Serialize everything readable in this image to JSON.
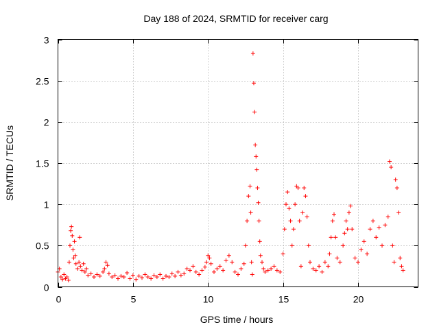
{
  "chart_data": {
    "type": "scatter",
    "title": "Day 188 of 2024, SRMTID for receiver carg",
    "xlabel": "GPS time / hours",
    "ylabel": "SRMTID / TECUs",
    "xlim": [
      0,
      24
    ],
    "ylim": [
      0,
      3
    ],
    "x_ticks": [
      0,
      5,
      10,
      15,
      20
    ],
    "y_ticks": [
      0,
      0.5,
      1,
      1.5,
      2,
      2.5,
      3
    ],
    "x_tick_labels": [
      "0",
      "5",
      "10",
      "15",
      "20"
    ],
    "y_tick_labels": [
      "0",
      "0.5",
      "1",
      "1.5",
      "2",
      "2.5",
      "3"
    ],
    "grid": true,
    "marker": "+",
    "marker_color": "#ff0000",
    "series": [
      {
        "name": "SRMTID",
        "points": [
          [
            0.0,
            0.18
          ],
          [
            0.1,
            0.22
          ],
          [
            0.2,
            0.12
          ],
          [
            0.3,
            0.09
          ],
          [
            0.4,
            0.15
          ],
          [
            0.5,
            0.1
          ],
          [
            0.6,
            0.12
          ],
          [
            0.7,
            0.08
          ],
          [
            0.75,
            0.3
          ],
          [
            0.8,
            0.5
          ],
          [
            0.85,
            0.68
          ],
          [
            0.9,
            0.73
          ],
          [
            0.95,
            0.62
          ],
          [
            1.0,
            0.45
          ],
          [
            1.05,
            0.35
          ],
          [
            1.1,
            0.55
          ],
          [
            1.15,
            0.38
          ],
          [
            1.2,
            0.28
          ],
          [
            1.3,
            0.22
          ],
          [
            1.4,
            0.3
          ],
          [
            1.45,
            0.6
          ],
          [
            1.5,
            0.25
          ],
          [
            1.6,
            0.2
          ],
          [
            1.7,
            0.28
          ],
          [
            1.8,
            0.18
          ],
          [
            1.9,
            0.22
          ],
          [
            2.0,
            0.14
          ],
          [
            2.2,
            0.16
          ],
          [
            2.4,
            0.12
          ],
          [
            2.6,
            0.15
          ],
          [
            2.8,
            0.13
          ],
          [
            3.0,
            0.18
          ],
          [
            3.1,
            0.22
          ],
          [
            3.2,
            0.3
          ],
          [
            3.3,
            0.26
          ],
          [
            3.4,
            0.16
          ],
          [
            3.6,
            0.12
          ],
          [
            3.8,
            0.14
          ],
          [
            4.0,
            0.1
          ],
          [
            4.2,
            0.13
          ],
          [
            4.4,
            0.12
          ],
          [
            4.6,
            0.17
          ],
          [
            4.8,
            0.1
          ],
          [
            5.0,
            0.14
          ],
          [
            5.2,
            0.09
          ],
          [
            5.4,
            0.13
          ],
          [
            5.6,
            0.11
          ],
          [
            5.8,
            0.15
          ],
          [
            6.0,
            0.12
          ],
          [
            6.2,
            0.1
          ],
          [
            6.4,
            0.14
          ],
          [
            6.6,
            0.12
          ],
          [
            6.8,
            0.15
          ],
          [
            7.0,
            0.1
          ],
          [
            7.2,
            0.13
          ],
          [
            7.4,
            0.12
          ],
          [
            7.6,
            0.16
          ],
          [
            7.8,
            0.13
          ],
          [
            8.0,
            0.18
          ],
          [
            8.2,
            0.14
          ],
          [
            8.4,
            0.16
          ],
          [
            8.6,
            0.22
          ],
          [
            8.8,
            0.2
          ],
          [
            9.0,
            0.25
          ],
          [
            9.2,
            0.18
          ],
          [
            9.4,
            0.15
          ],
          [
            9.6,
            0.2
          ],
          [
            9.8,
            0.24
          ],
          [
            9.9,
            0.3
          ],
          [
            10.0,
            0.38
          ],
          [
            10.1,
            0.35
          ],
          [
            10.2,
            0.28
          ],
          [
            10.4,
            0.18
          ],
          [
            10.6,
            0.22
          ],
          [
            10.8,
            0.25
          ],
          [
            11.0,
            0.2
          ],
          [
            11.2,
            0.32
          ],
          [
            11.4,
            0.38
          ],
          [
            11.6,
            0.3
          ],
          [
            11.8,
            0.18
          ],
          [
            12.0,
            0.15
          ],
          [
            12.2,
            0.22
          ],
          [
            12.4,
            0.28
          ],
          [
            12.5,
            0.5
          ],
          [
            12.6,
            0.8
          ],
          [
            12.7,
            1.1
          ],
          [
            12.8,
            1.22
          ],
          [
            12.85,
            0.9
          ],
          [
            12.9,
            0.3
          ],
          [
            12.95,
            0.15
          ],
          [
            13.0,
            2.83
          ],
          [
            13.05,
            2.47
          ],
          [
            13.1,
            2.12
          ],
          [
            13.15,
            1.72
          ],
          [
            13.2,
            1.58
          ],
          [
            13.25,
            1.42
          ],
          [
            13.3,
            1.2
          ],
          [
            13.35,
            1.02
          ],
          [
            13.4,
            0.8
          ],
          [
            13.45,
            0.55
          ],
          [
            13.5,
            0.38
          ],
          [
            13.6,
            0.3
          ],
          [
            13.7,
            0.22
          ],
          [
            13.8,
            0.18
          ],
          [
            14.0,
            0.2
          ],
          [
            14.2,
            0.22
          ],
          [
            14.4,
            0.25
          ],
          [
            14.6,
            0.2
          ],
          [
            14.8,
            0.18
          ],
          [
            15.0,
            0.4
          ],
          [
            15.1,
            0.7
          ],
          [
            15.2,
            1.0
          ],
          [
            15.3,
            1.15
          ],
          [
            15.4,
            0.95
          ],
          [
            15.5,
            0.8
          ],
          [
            15.6,
            0.5
          ],
          [
            15.7,
            0.7
          ],
          [
            15.8,
            1.0
          ],
          [
            15.9,
            1.22
          ],
          [
            16.0,
            1.2
          ],
          [
            16.1,
            0.8
          ],
          [
            16.2,
            0.25
          ],
          [
            16.3,
            0.9
          ],
          [
            16.4,
            1.2
          ],
          [
            16.5,
            1.1
          ],
          [
            16.6,
            0.85
          ],
          [
            16.7,
            0.5
          ],
          [
            16.8,
            0.3
          ],
          [
            17.0,
            0.22
          ],
          [
            17.2,
            0.2
          ],
          [
            17.4,
            0.25
          ],
          [
            17.6,
            0.18
          ],
          [
            17.8,
            0.3
          ],
          [
            18.0,
            0.25
          ],
          [
            18.1,
            0.4
          ],
          [
            18.2,
            0.6
          ],
          [
            18.3,
            0.8
          ],
          [
            18.4,
            0.88
          ],
          [
            18.5,
            0.6
          ],
          [
            18.6,
            0.35
          ],
          [
            18.8,
            0.3
          ],
          [
            19.0,
            0.5
          ],
          [
            19.1,
            0.65
          ],
          [
            19.2,
            0.8
          ],
          [
            19.3,
            0.7
          ],
          [
            19.4,
            0.9
          ],
          [
            19.5,
            0.98
          ],
          [
            19.6,
            0.7
          ],
          [
            19.8,
            0.35
          ],
          [
            20.0,
            0.3
          ],
          [
            20.2,
            0.45
          ],
          [
            20.4,
            0.55
          ],
          [
            20.6,
            0.4
          ],
          [
            20.8,
            0.7
          ],
          [
            21.0,
            0.8
          ],
          [
            21.2,
            0.6
          ],
          [
            21.4,
            0.72
          ],
          [
            21.6,
            0.5
          ],
          [
            21.8,
            0.75
          ],
          [
            22.0,
            0.85
          ],
          [
            22.1,
            1.52
          ],
          [
            22.2,
            1.45
          ],
          [
            22.3,
            0.5
          ],
          [
            22.4,
            0.3
          ],
          [
            22.5,
            1.3
          ],
          [
            22.6,
            1.2
          ],
          [
            22.7,
            0.9
          ],
          [
            22.8,
            0.35
          ],
          [
            22.9,
            0.25
          ],
          [
            23.0,
            0.2
          ]
        ]
      }
    ]
  }
}
